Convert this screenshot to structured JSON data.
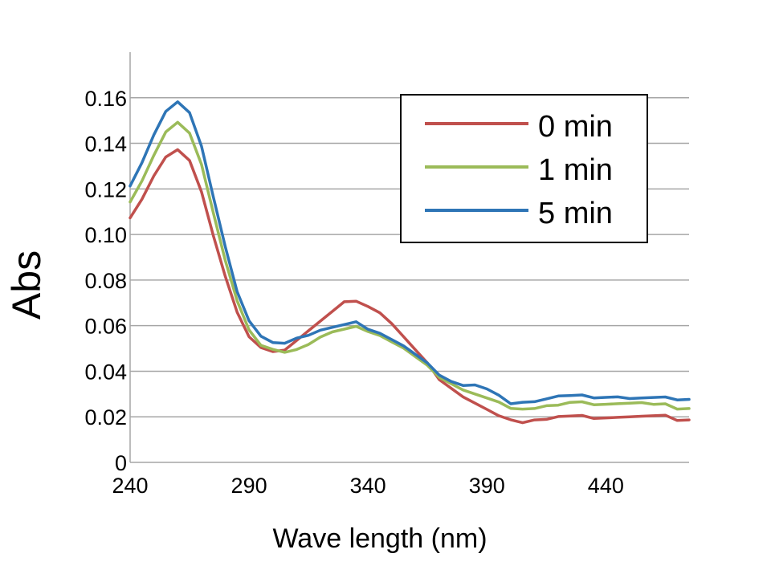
{
  "chart_data": {
    "type": "line",
    "title": "",
    "xlabel": "Wave length (nm)",
    "ylabel": "Abs",
    "xlim": [
      240,
      475
    ],
    "ylim": [
      0,
      0.18
    ],
    "x_ticks": [
      "240",
      "290",
      "340",
      "390",
      "440"
    ],
    "x_tick_values": [
      240,
      290,
      340,
      390,
      440
    ],
    "y_ticks": [
      "0",
      "0.02",
      "0.04",
      "0.06",
      "0.08",
      "0.10",
      "0.12",
      "0.14",
      "0.16"
    ],
    "y_tick_values": [
      0,
      0.02,
      0.04,
      0.06,
      0.08,
      0.1,
      0.12,
      0.14,
      0.16
    ],
    "grid": true,
    "legend_position": "top-right",
    "x": [
      240,
      245,
      250,
      255,
      260,
      265,
      270,
      275,
      280,
      285,
      290,
      295,
      300,
      305,
      310,
      315,
      320,
      325,
      330,
      335,
      340,
      345,
      350,
      355,
      360,
      365,
      370,
      375,
      380,
      385,
      390,
      395,
      400,
      405,
      410,
      415,
      420,
      425,
      430,
      435,
      440,
      445,
      450,
      455,
      460,
      465,
      470,
      475
    ],
    "series": [
      {
        "name": "0 min",
        "color": "#c0504d",
        "values": [
          0.108,
          0.116,
          0.126,
          0.134,
          0.137,
          0.132,
          0.118,
          0.1,
          0.082,
          0.066,
          0.055,
          0.05,
          0.048,
          0.05,
          0.054,
          0.058,
          0.062,
          0.066,
          0.07,
          0.07,
          0.069,
          0.066,
          0.061,
          0.055,
          0.049,
          0.043,
          0.037,
          0.033,
          0.029,
          0.026,
          0.023,
          0.02,
          0.018,
          0.018,
          0.019,
          0.019,
          0.02,
          0.02,
          0.02,
          0.02,
          0.02,
          0.02,
          0.02,
          0.02,
          0.02,
          0.02,
          0.019,
          0.019
        ]
      },
      {
        "name": "1 min",
        "color": "#9bbb59",
        "values": [
          0.115,
          0.124,
          0.135,
          0.145,
          0.149,
          0.144,
          0.13,
          0.11,
          0.089,
          0.071,
          0.058,
          0.051,
          0.049,
          0.049,
          0.05,
          0.052,
          0.055,
          0.057,
          0.058,
          0.059,
          0.058,
          0.056,
          0.053,
          0.05,
          0.046,
          0.042,
          0.038,
          0.035,
          0.032,
          0.03,
          0.028,
          0.026,
          0.023,
          0.024,
          0.024,
          0.025,
          0.025,
          0.026,
          0.026,
          0.026,
          0.026,
          0.026,
          0.026,
          0.026,
          0.025,
          0.025,
          0.024,
          0.024
        ]
      },
      {
        "name": "5 min",
        "color": "#2e75b6",
        "values": [
          0.122,
          0.132,
          0.144,
          0.154,
          0.158,
          0.153,
          0.138,
          0.117,
          0.095,
          0.075,
          0.062,
          0.055,
          0.052,
          0.053,
          0.055,
          0.056,
          0.058,
          0.059,
          0.06,
          0.061,
          0.059,
          0.057,
          0.054,
          0.051,
          0.047,
          0.043,
          0.039,
          0.036,
          0.034,
          0.034,
          0.032,
          0.029,
          0.025,
          0.027,
          0.027,
          0.028,
          0.029,
          0.029,
          0.029,
          0.029,
          0.029,
          0.029,
          0.028,
          0.028,
          0.028,
          0.028,
          0.028,
          0.028
        ]
      }
    ]
  }
}
